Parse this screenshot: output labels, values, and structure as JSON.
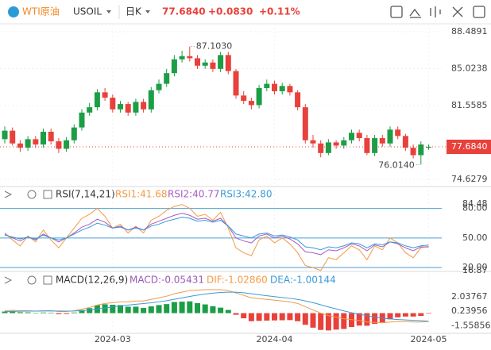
{
  "header": {
    "symbol": "WTI原油",
    "code": "USOIL",
    "period": "日K",
    "price": "77.6840",
    "change": "+0.0830",
    "change_pct": "+0.11%"
  },
  "chart_data": [
    {
      "type": "candlestick",
      "up_color": "#1c9e46",
      "down_color": "#e8413b",
      "grid": true,
      "categories": [
        null,
        null,
        null,
        null,
        null,
        null,
        null,
        null,
        null,
        null,
        null,
        null,
        null,
        null,
        "2024-03",
        null,
        null,
        null,
        null,
        null,
        null,
        null,
        null,
        null,
        null,
        null,
        null,
        null,
        null,
        null,
        null,
        null,
        null,
        null,
        null,
        "2024-04",
        null,
        null,
        null,
        null,
        null,
        null,
        null,
        null,
        null,
        null,
        null,
        null,
        null,
        null,
        null,
        null,
        null,
        null,
        null,
        "2024-05"
      ],
      "open": [
        78.4,
        79.2,
        78.0,
        77.6,
        78.4,
        77.9,
        79.1,
        78.2,
        77.5,
        78.3,
        79.5,
        80.9,
        81.4,
        82.8,
        82.3,
        81.2,
        81.7,
        80.9,
        81.9,
        81.2,
        83.0,
        83.6,
        84.6,
        85.9,
        86.2,
        86.0,
        85.3,
        85.6,
        85.0,
        86.3,
        84.8,
        82.5,
        82.0,
        81.6,
        83.2,
        83.6,
        82.9,
        83.4,
        82.8,
        81.4,
        78.3,
        78.0,
        77.1,
        78.1,
        77.8,
        78.3,
        79.0,
        78.5,
        77.1,
        78.5,
        78.0,
        79.3,
        78.7,
        77.6,
        76.9,
        77.6
      ],
      "high": [
        79.6,
        79.5,
        78.3,
        78.7,
        78.7,
        79.4,
        79.4,
        78.5,
        78.6,
        79.8,
        81.2,
        81.8,
        83.1,
        83.2,
        82.6,
        82.0,
        81.9,
        82.2,
        82.2,
        83.3,
        84.0,
        85.0,
        86.3,
        86.7,
        87.103,
        86.3,
        85.9,
        85.9,
        86.6,
        86.6,
        85.0,
        82.9,
        82.3,
        83.5,
        84.0,
        83.9,
        83.7,
        83.6,
        83.0,
        81.7,
        78.8,
        78.3,
        78.4,
        78.3,
        78.6,
        79.3,
        79.3,
        78.8,
        78.8,
        78.8,
        79.6,
        79.6,
        78.9,
        77.9,
        78.2,
        77.9
      ],
      "low": [
        78.0,
        77.8,
        77.2,
        77.3,
        77.6,
        77.6,
        77.9,
        77.1,
        77.2,
        78.0,
        79.2,
        80.6,
        81.1,
        82.0,
        80.9,
        80.9,
        80.6,
        80.6,
        80.9,
        80.9,
        82.7,
        83.3,
        84.3,
        85.6,
        85.7,
        85.0,
        85.0,
        84.7,
        84.7,
        84.5,
        82.2,
        81.7,
        81.2,
        81.3,
        82.9,
        82.6,
        82.6,
        82.5,
        81.1,
        78.0,
        77.6,
        76.7,
        76.9,
        77.5,
        77.5,
        78.0,
        78.2,
        76.9,
        76.8,
        77.7,
        77.7,
        78.4,
        77.3,
        76.6,
        76.014,
        77.4
      ],
      "close": [
        79.2,
        78.0,
        77.6,
        78.4,
        77.9,
        79.1,
        78.2,
        77.5,
        78.3,
        79.5,
        80.9,
        81.4,
        82.8,
        82.3,
        81.2,
        81.7,
        80.9,
        81.9,
        81.2,
        83.0,
        83.6,
        84.6,
        85.9,
        86.2,
        86.0,
        85.3,
        85.6,
        85.0,
        86.3,
        84.8,
        82.5,
        82.0,
        81.6,
        83.2,
        83.6,
        82.9,
        83.4,
        82.8,
        81.4,
        78.3,
        78.0,
        77.1,
        78.1,
        77.8,
        78.3,
        79.0,
        78.5,
        77.1,
        78.5,
        78.0,
        79.3,
        78.7,
        77.6,
        76.9,
        77.9,
        77.684
      ],
      "value_labels": {
        "last": "77.6840"
      },
      "annotations": {
        "max": "87.1030",
        "min": "76.0140"
      },
      "ylim": [
        74.6279,
        88.4891
      ],
      "yticks": [
        88.4891,
        85.0238,
        81.5585,
        74.6279
      ]
    },
    {
      "type": "line",
      "title": "RSI(7,14,21)",
      "series": [
        {
          "label": "RSI1:41.68",
          "color": "#f29a45",
          "values": [
            55,
            48,
            42,
            52,
            46,
            58,
            48,
            40,
            50,
            60,
            70,
            74,
            80,
            72,
            60,
            64,
            55,
            62,
            55,
            68,
            72,
            78,
            82,
            84,
            80,
            72,
            74,
            68,
            76,
            60,
            40,
            35,
            32,
            48,
            52,
            45,
            50,
            44,
            35,
            22,
            20,
            17,
            30,
            28,
            35,
            42,
            38,
            28,
            42,
            38,
            50,
            45,
            35,
            30,
            40,
            41.68
          ]
        },
        {
          "label": "RSI2:40.77",
          "color": "#a55cc4",
          "values": [
            54,
            50,
            47,
            51,
            48,
            54,
            50,
            46,
            50,
            55,
            61,
            64,
            69,
            66,
            60,
            62,
            58,
            61,
            58,
            64,
            67,
            70,
            73,
            75,
            73,
            69,
            70,
            67,
            70,
            62,
            50,
            47,
            45,
            52,
            54,
            50,
            52,
            49,
            44,
            36,
            35,
            33,
            38,
            37,
            40,
            44,
            42,
            37,
            43,
            41,
            46,
            44,
            40,
            37,
            41,
            40.77
          ]
        },
        {
          "label": "RSI3:42.80",
          "color": "#3a9ad9",
          "values": [
            53,
            51,
            49,
            51,
            49,
            53,
            50,
            48,
            50,
            54,
            58,
            61,
            65,
            63,
            60,
            61,
            58,
            60,
            58,
            62,
            64,
            67,
            69,
            71,
            70,
            67,
            68,
            66,
            68,
            62,
            54,
            52,
            50,
            54,
            55,
            52,
            53,
            51,
            48,
            41,
            40,
            38,
            41,
            40,
            42,
            45,
            44,
            40,
            44,
            43,
            46,
            45,
            42,
            40,
            42,
            42.8
          ]
        }
      ],
      "ylim": [
        16.87,
        84.48
      ],
      "yticks": [
        84.48,
        {
          "value": 80,
          "label": "80.00"
        },
        {
          "value": 50,
          "label": "50.00"
        },
        {
          "value": 20,
          "label": "20.00"
        },
        16.87
      ]
    },
    {
      "type": "macd",
      "title": "MACD(12,26,9)",
      "up_color": "#1c9e46",
      "down_color": "#e8413b",
      "series": [
        {
          "label": "MACD:-0.05431",
          "color": "#9b59b6",
          "values": [
            0.2,
            0.26,
            0.12,
            0.1,
            0,
            0.08,
            0.06,
            -0.12,
            -0.1,
            0.08,
            0.38,
            0.62,
            0.98,
            1.1,
            1.04,
            1.0,
            0.8,
            0.8,
            0.64,
            0.84,
            1.0,
            1.12,
            1.38,
            1.42,
            1.46,
            1.24,
            1.08,
            0.86,
            0.68,
            0.4,
            -0.2,
            -0.64,
            -1.0,
            -0.96,
            -0.92,
            -0.9,
            -0.88,
            -0.86,
            -1.0,
            -1.44,
            -1.8,
            -2.08,
            -2.14,
            -2.04,
            -1.96,
            -1.72,
            -1.54,
            -1.56,
            -1.32,
            -1.14,
            -0.76,
            -0.52,
            -0.42,
            -0.42,
            -0.34,
            -0.05431
          ]
        },
        {
          "label": "DIF:-1.02860",
          "color": "#f29a45",
          "values": [
            0.3,
            0.35,
            0.3,
            0.3,
            0.25,
            0.3,
            0.3,
            0.2,
            0.2,
            0.3,
            0.5,
            0.7,
            1.0,
            1.2,
            1.3,
            1.4,
            1.4,
            1.5,
            1.5,
            1.7,
            1.9,
            2.1,
            2.4,
            2.6,
            2.8,
            2.85,
            2.9,
            2.9,
            2.9,
            2.8,
            2.5,
            2.2,
            1.9,
            1.8,
            1.7,
            1.6,
            1.5,
            1.4,
            1.2,
            0.8,
            0.4,
            0.0,
            -0.3,
            -0.5,
            -0.7,
            -0.8,
            -0.9,
            -1.1,
            -1.15,
            -1.2,
            -1.1,
            -1.05,
            -1.05,
            -1.1,
            -1.1,
            -1.0286
          ]
        },
        {
          "label": "DEA:-1.00144",
          "color": "#3a9ad9",
          "values": [
            0.2,
            0.22,
            0.24,
            0.25,
            0.25,
            0.26,
            0.27,
            0.26,
            0.25,
            0.26,
            0.31,
            0.39,
            0.51,
            0.65,
            0.78,
            0.9,
            1.0,
            1.1,
            1.18,
            1.28,
            1.4,
            1.54,
            1.71,
            1.89,
            2.07,
            2.23,
            2.36,
            2.47,
            2.56,
            2.6,
            2.6,
            2.52,
            2.4,
            2.28,
            2.16,
            2.05,
            1.94,
            1.83,
            1.7,
            1.52,
            1.3,
            1.04,
            0.77,
            0.52,
            0.28,
            0.06,
            -0.13,
            -0.32,
            -0.49,
            -0.63,
            -0.72,
            -0.79,
            -0.84,
            -0.89,
            -0.93,
            -1.00144
          ]
        }
      ],
      "ylim": [
        -2.5,
        3.2
      ],
      "yticks": [
        2.03767,
        0.23956,
        -1.55856
      ]
    }
  ]
}
